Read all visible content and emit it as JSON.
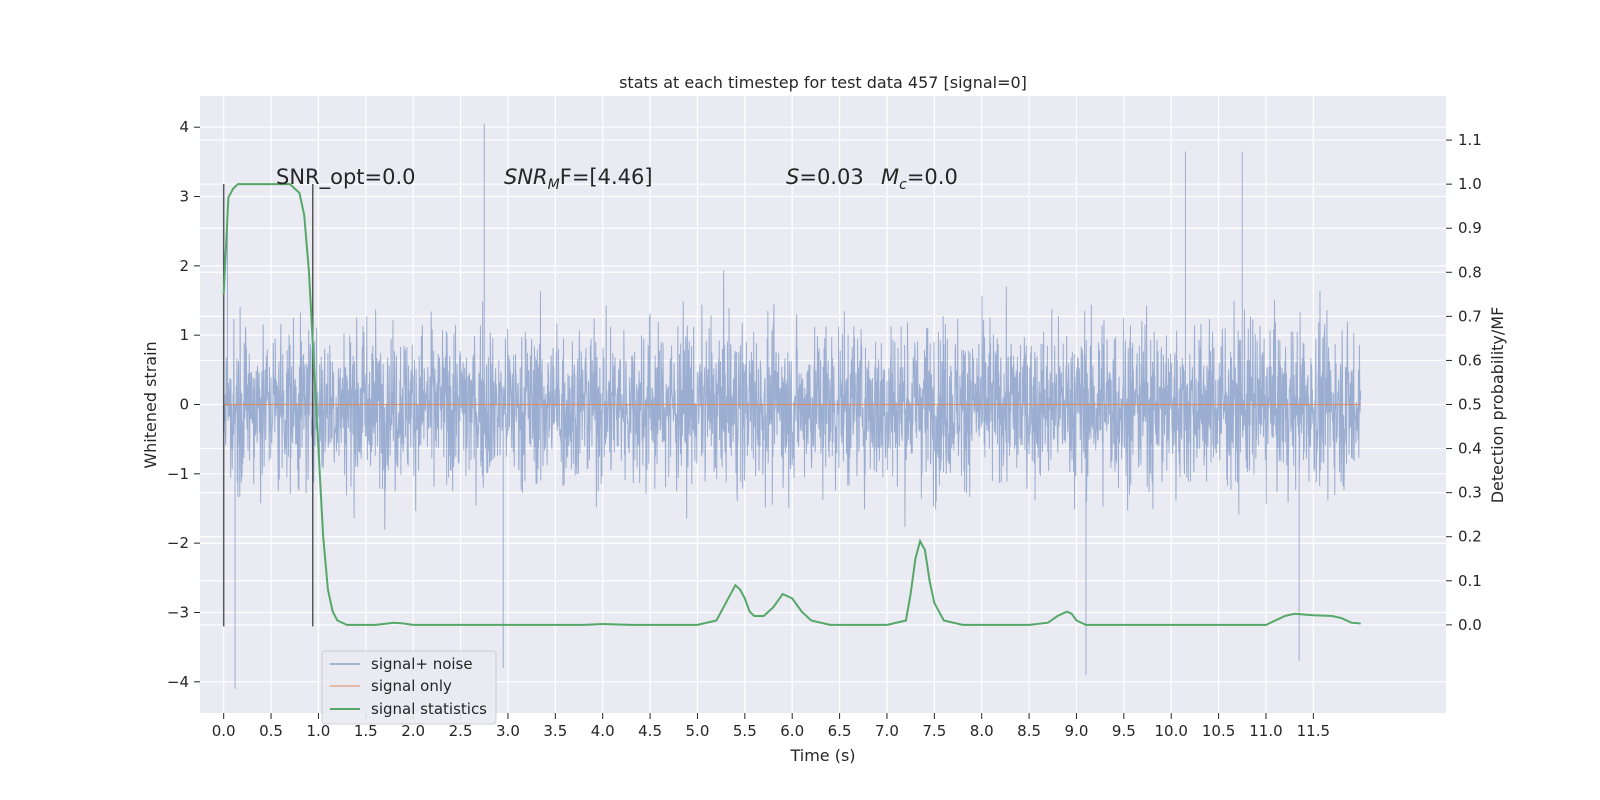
{
  "chart_data": {
    "type": "line",
    "title": "stats at each timestep for test data 457 [signal=0]",
    "xlabel": "Time (s)",
    "ylabel": "Whitened strain",
    "y2label": "Detection probability/MF",
    "xlim": [
      -0.25,
      12.9
    ],
    "ylim": [
      -4.45,
      4.45
    ],
    "y2lim": [
      -0.2,
      1.2
    ],
    "x_ticks": [
      "0.0",
      "0.5",
      "1.0",
      "1.5",
      "2.0",
      "2.5",
      "3.0",
      "3.5",
      "4.0",
      "4.5",
      "5.0",
      "5.5",
      "6.0",
      "6.5",
      "7.0",
      "7.5",
      "8.0",
      "8.5",
      "9.0",
      "9.5",
      "10.0",
      "10.5",
      "11.0",
      "11.5"
    ],
    "x_tick_values": [
      0,
      0.5,
      1,
      1.5,
      2,
      2.5,
      3,
      3.5,
      4,
      4.5,
      5,
      5.5,
      6,
      6.5,
      7,
      7.5,
      8,
      8.5,
      9,
      9.5,
      10,
      10.5,
      11,
      11.5
    ],
    "y_ticks": [
      "−4",
      "−3",
      "−2",
      "−1",
      "0",
      "1",
      "2",
      "3",
      "4"
    ],
    "y_tick_values": [
      -4,
      -3,
      -2,
      -1,
      0,
      1,
      2,
      3,
      4
    ],
    "y2_ticks": [
      "0.0",
      "0.1",
      "0.2",
      "0.3",
      "0.4",
      "0.5",
      "0.6",
      "0.7",
      "0.8",
      "0.9",
      "1.0",
      "1.1"
    ],
    "y2_tick_values": [
      0,
      0.1,
      0.2,
      0.3,
      0.4,
      0.5,
      0.6,
      0.7,
      0.8,
      0.9,
      1.0,
      1.1
    ],
    "grid": true,
    "legend_placement": "lower-left",
    "annotations": {
      "snr_opt": "SNR_opt=0.0",
      "snr_mf_prefix": "SNR",
      "snr_mf_sub": "M",
      "snr_mf_suffix": "F=[4.46]",
      "s_label": "S",
      "s_value": "=0.03",
      "mc_label": "M",
      "mc_sub": "c",
      "mc_value": "=0.0"
    },
    "vlines_x": [
      0,
      0.94
    ],
    "series": [
      {
        "name": "signal+ noise",
        "color": "#4c72b0",
        "kind": "noise",
        "x_range": [
          0,
          12
        ],
        "typical_amplitude": 1.0,
        "notable_peaks": [
          [
            0.04,
            2.9
          ],
          [
            0.12,
            -4.1
          ],
          [
            2.75,
            4.05
          ],
          [
            2.95,
            -3.8
          ],
          [
            10.15,
            3.65
          ],
          [
            10.75,
            3.65
          ],
          [
            9.1,
            -3.9
          ],
          [
            11.35,
            -3.7
          ]
        ]
      },
      {
        "name": "signal only",
        "color": "#dd8452",
        "x": [
          0,
          12
        ],
        "y": [
          0,
          0
        ]
      },
      {
        "name": "signal statistics",
        "color": "#55a868",
        "axis": "right",
        "x": [
          0,
          0.05,
          0.1,
          0.15,
          0.2,
          0.3,
          0.4,
          0.5,
          0.6,
          0.7,
          0.8,
          0.85,
          0.9,
          0.95,
          1.0,
          1.05,
          1.1,
          1.15,
          1.2,
          1.3,
          1.4,
          1.6,
          1.8,
          1.9,
          2.0,
          2.2,
          2.6,
          3.0,
          3.5,
          3.8,
          4.0,
          4.3,
          4.8,
          5.0,
          5.2,
          5.3,
          5.4,
          5.45,
          5.5,
          5.55,
          5.6,
          5.7,
          5.8,
          5.9,
          6.0,
          6.1,
          6.2,
          6.4,
          6.6,
          7.0,
          7.2,
          7.25,
          7.3,
          7.35,
          7.4,
          7.45,
          7.5,
          7.6,
          7.8,
          8.0,
          8.5,
          8.7,
          8.8,
          8.9,
          8.95,
          9.0,
          9.1,
          9.5,
          10.0,
          10.5,
          11.0,
          11.2,
          11.3,
          11.5,
          11.7,
          11.8,
          11.9,
          12.0
        ],
        "y": [
          0.75,
          0.97,
          0.99,
          1.0,
          1.0,
          1.0,
          1.0,
          1.0,
          1.0,
          1.0,
          0.98,
          0.93,
          0.8,
          0.6,
          0.4,
          0.2,
          0.08,
          0.03,
          0.01,
          0.0,
          0.0,
          0.0,
          0.005,
          0.003,
          0.0,
          0.0,
          0.0,
          0.0,
          0.0,
          0.0,
          0.002,
          0.0,
          0.0,
          0.0,
          0.01,
          0.05,
          0.09,
          0.08,
          0.06,
          0.03,
          0.02,
          0.02,
          0.04,
          0.07,
          0.06,
          0.03,
          0.01,
          0.0,
          0.0,
          0.0,
          0.01,
          0.07,
          0.15,
          0.19,
          0.17,
          0.1,
          0.05,
          0.01,
          0.0,
          0.0,
          0.0,
          0.005,
          0.02,
          0.03,
          0.025,
          0.01,
          0.0,
          0.0,
          0.0,
          0.0,
          0.0,
          0.02,
          0.025,
          0.022,
          0.02,
          0.015,
          0.005,
          0.003
        ]
      }
    ]
  }
}
